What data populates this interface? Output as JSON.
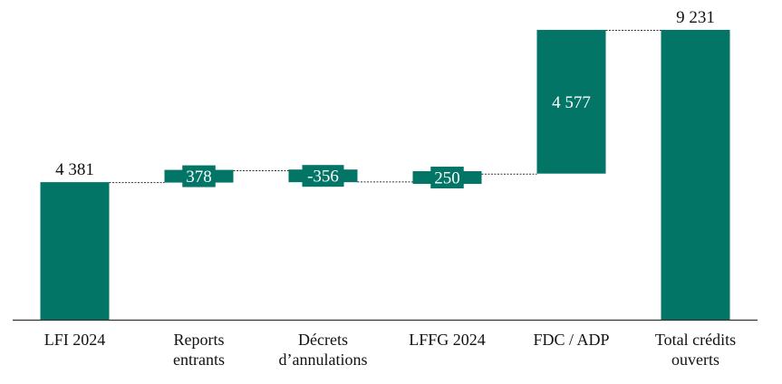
{
  "chart_data": {
    "type": "waterfall",
    "title": "",
    "xlabel": "",
    "ylabel": "",
    "ylim": [
      0,
      9231
    ],
    "grid": false,
    "legend": "none",
    "colors": {
      "bar": "#027567",
      "connector": "#333333",
      "axis": "#333333",
      "label_on_bar": "#ffffff",
      "label_above": "#111111"
    },
    "categories": [
      [
        "LFI 2024"
      ],
      [
        "Reports",
        "entrants"
      ],
      [
        "Décrets",
        "d’annulations"
      ],
      [
        "LFFG 2024"
      ],
      [
        "FDC / ADP"
      ],
      [
        "Total crédits",
        "ouverts"
      ]
    ],
    "bars": [
      {
        "kind": "total",
        "value": 4381,
        "label": "4 381"
      },
      {
        "kind": "delta",
        "value": 378,
        "label": "378"
      },
      {
        "kind": "delta",
        "value": -356,
        "label": "-356"
      },
      {
        "kind": "delta",
        "value": 250,
        "label": "250"
      },
      {
        "kind": "delta",
        "value": 4577,
        "label": "4 577"
      },
      {
        "kind": "total",
        "value": 9231,
        "label": "9 231"
      }
    ]
  }
}
